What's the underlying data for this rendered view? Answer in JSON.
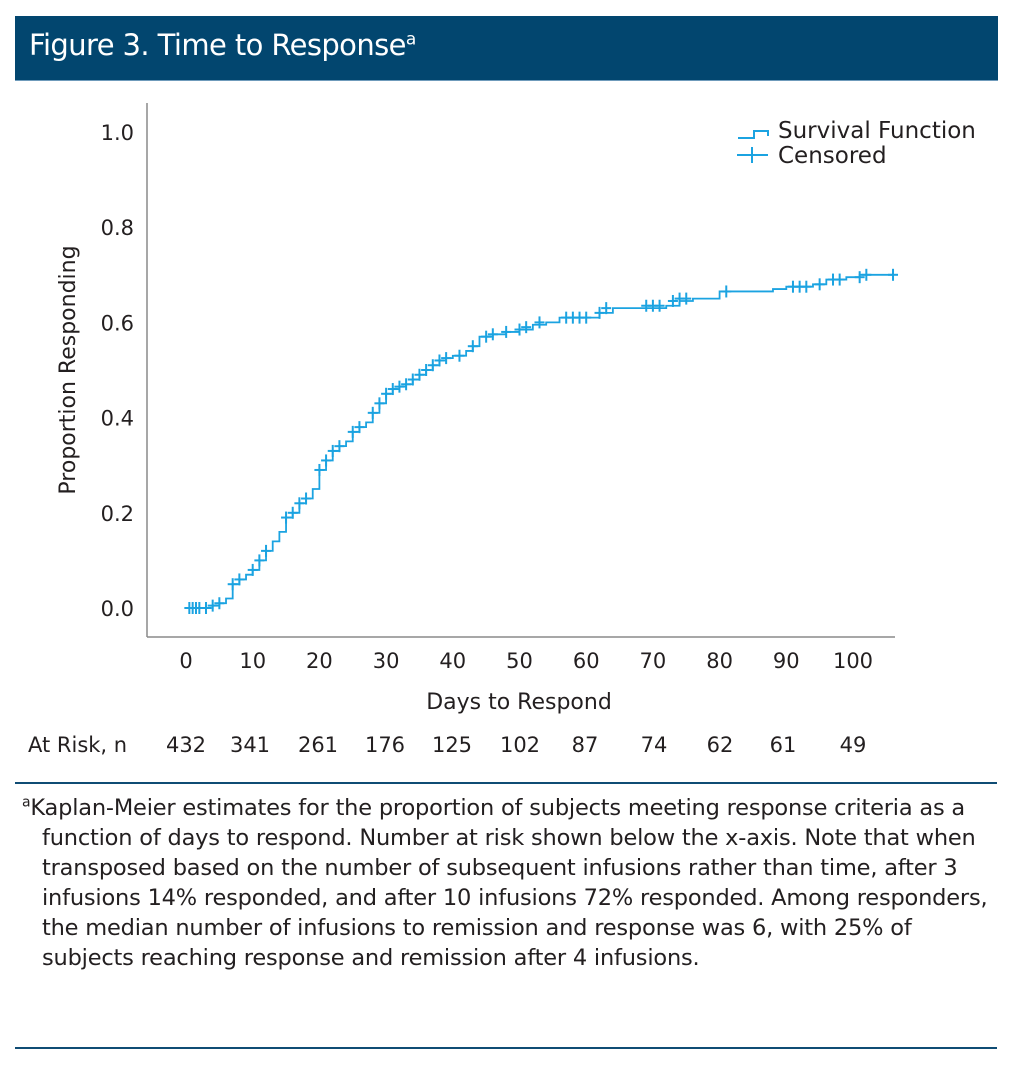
{
  "header": {
    "title": "Figure 3. Time to Response",
    "title_superscript": "a",
    "background_color": "#02466f"
  },
  "chart_data": {
    "type": "line",
    "subtype": "kaplan-meier step",
    "title": "Figure 3. Time to Response",
    "xlabel": "Days to Respond",
    "ylabel": "Proportion Responding",
    "xlim": [
      -3,
      106
    ],
    "ylim": [
      -0.05,
      1.05
    ],
    "x_ticks": [
      0,
      10,
      20,
      30,
      40,
      50,
      60,
      70,
      80,
      90,
      100
    ],
    "y_ticks": [
      "0.0",
      "0.2",
      "0.4",
      "0.6",
      "0.8",
      "1.0"
    ],
    "y_tick_values": [
      0.0,
      0.2,
      0.4,
      0.6,
      0.8,
      1.0
    ],
    "grid": false,
    "legend": {
      "placement": "top-right",
      "entries": [
        {
          "label": "Survival Function",
          "marker": "step-line"
        },
        {
          "label": "Censored",
          "marker": "plus"
        }
      ]
    },
    "series_color": "#1ba3e1",
    "survival_function": {
      "x": [
        0,
        1,
        2,
        3,
        4,
        5,
        6,
        7,
        8,
        9,
        10,
        11,
        12,
        13,
        14,
        15,
        16,
        17,
        18,
        19,
        20,
        21,
        22,
        23,
        24,
        25,
        26,
        27,
        28,
        29,
        30,
        31,
        32,
        33,
        34,
        35,
        36,
        37,
        38,
        39,
        40,
        42,
        43,
        44,
        46,
        48,
        50,
        52,
        54,
        56,
        60,
        62,
        64,
        68,
        72,
        74,
        76,
        80,
        88,
        90,
        94,
        96,
        99,
        101,
        106
      ],
      "y": [
        0.0,
        0.0,
        0.0,
        0.0,
        0.005,
        0.01,
        0.02,
        0.05,
        0.06,
        0.07,
        0.08,
        0.1,
        0.12,
        0.14,
        0.16,
        0.19,
        0.2,
        0.22,
        0.23,
        0.25,
        0.29,
        0.31,
        0.33,
        0.34,
        0.35,
        0.37,
        0.38,
        0.39,
        0.41,
        0.43,
        0.45,
        0.46,
        0.465,
        0.47,
        0.48,
        0.49,
        0.5,
        0.51,
        0.52,
        0.525,
        0.53,
        0.54,
        0.55,
        0.57,
        0.575,
        0.58,
        0.585,
        0.595,
        0.6,
        0.61,
        0.61,
        0.62,
        0.63,
        0.63,
        0.635,
        0.645,
        0.65,
        0.665,
        0.67,
        0.675,
        0.68,
        0.69,
        0.695,
        0.7,
        0.7
      ]
    },
    "censored": {
      "x": [
        0.5,
        1,
        1.5,
        2,
        3,
        4,
        5,
        7,
        8,
        10,
        11,
        12,
        15,
        16,
        17,
        18,
        20,
        21,
        22,
        23,
        25,
        26,
        28,
        29,
        30,
        31,
        32,
        33,
        34,
        35,
        36,
        37,
        38,
        39,
        41,
        43,
        45,
        46,
        48,
        50,
        51,
        53,
        57,
        58,
        59,
        60,
        62,
        63,
        69,
        70,
        71,
        73,
        74,
        75,
        81,
        91,
        92,
        93,
        95,
        97,
        98,
        101,
        102,
        106
      ],
      "y": [
        0.0,
        0.0,
        0.0,
        0.0,
        0.0,
        0.005,
        0.01,
        0.05,
        0.06,
        0.08,
        0.1,
        0.12,
        0.19,
        0.2,
        0.22,
        0.23,
        0.29,
        0.31,
        0.33,
        0.34,
        0.37,
        0.38,
        0.41,
        0.43,
        0.45,
        0.46,
        0.465,
        0.47,
        0.48,
        0.49,
        0.5,
        0.51,
        0.52,
        0.525,
        0.53,
        0.55,
        0.57,
        0.575,
        0.58,
        0.585,
        0.59,
        0.6,
        0.61,
        0.61,
        0.61,
        0.61,
        0.62,
        0.63,
        0.635,
        0.635,
        0.635,
        0.645,
        0.65,
        0.65,
        0.665,
        0.675,
        0.675,
        0.675,
        0.68,
        0.69,
        0.69,
        0.695,
        0.7,
        0.7
      ]
    },
    "at_risk": {
      "label": "At Risk, n",
      "x": [
        0,
        10,
        20,
        30,
        40,
        50,
        60,
        70,
        80,
        90,
        100
      ],
      "values": [
        "432",
        "341",
        "261",
        "176",
        "125",
        "102",
        "87",
        "74",
        "62",
        "61",
        "49"
      ]
    }
  },
  "footnote": {
    "marker": "a",
    "text": "Kaplan-Meier estimates for the proportion of subjects meeting response criteria as a function of days to respond. Number at risk shown below the x-axis. Note that when transposed based on the number of subsequent infusions rather than time, after 3 infusions 14% responded, and after 10 infusions 72% responded. Among responders, the median number of infusions to remission and response was 6, with 25% of subjects reaching response and remission after 4 infusions."
  },
  "rule_color": "#0f4c74"
}
